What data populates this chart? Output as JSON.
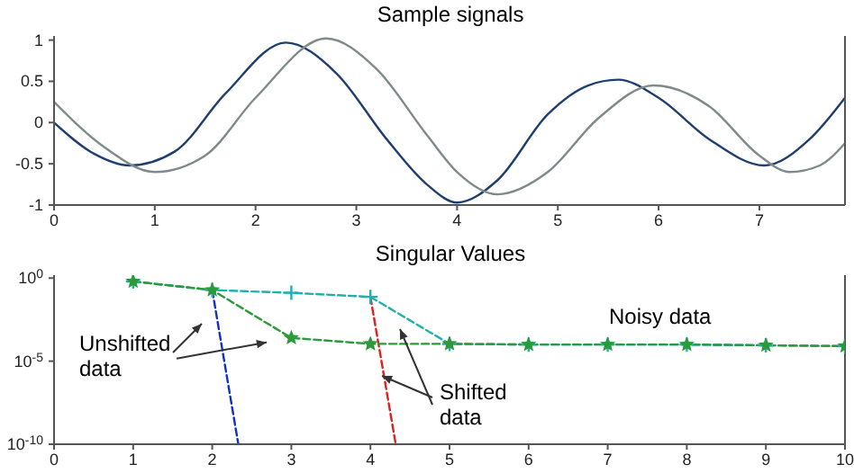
{
  "chart_data": [
    {
      "type": "line",
      "title": "Sample signals",
      "xlim": [
        0,
        7.85
      ],
      "xticks": [
        0,
        1,
        2,
        3,
        4,
        5,
        6,
        7
      ],
      "ylim": [
        -1,
        1.05
      ],
      "yticks": [
        -1,
        -0.5,
        0,
        0.5,
        1
      ],
      "grid": false,
      "marker": "none",
      "line_style": "solid",
      "series": [
        {
          "color": "#1f3f6f",
          "x": [
            0,
            0.4,
            0.75,
            1.2,
            1.7,
            2.3,
            2.8,
            3.3,
            3.7,
            4.0,
            4.4,
            4.9,
            5.3,
            5.6,
            6.0,
            6.5,
            7.05,
            7.5,
            7.85
          ],
          "values": [
            0,
            -0.38,
            -0.52,
            -0.35,
            0.35,
            0.97,
            0.6,
            -0.2,
            -0.75,
            -0.97,
            -0.7,
            0.1,
            0.45,
            0.52,
            0.3,
            -0.2,
            -0.52,
            -0.2,
            0.3
          ]
        },
        {
          "color": "#7f8a8a",
          "x": [
            0,
            0.5,
            1.0,
            1.5,
            2.0,
            2.7,
            3.2,
            3.7,
            4.0,
            4.4,
            4.9,
            5.4,
            5.95,
            6.5,
            7.0,
            7.3,
            7.6,
            7.85
          ],
          "values": [
            0.25,
            -0.3,
            -0.6,
            -0.4,
            0.3,
            1.02,
            0.65,
            -0.15,
            -0.6,
            -0.87,
            -0.6,
            0.05,
            0.45,
            0.2,
            -0.4,
            -0.6,
            -0.52,
            -0.25
          ]
        }
      ]
    },
    {
      "type": "line",
      "title": "Singular Values",
      "log": "y",
      "xlim": [
        0,
        10
      ],
      "xticks": [
        0,
        1,
        2,
        3,
        4,
        5,
        6,
        7,
        8,
        9,
        10
      ],
      "ylim": [
        1e-10,
        1.5
      ],
      "yticks": [
        {
          "value": 1e-10,
          "label": "10$^{-10}$"
        },
        {
          "value": 1e-05,
          "label": "10$^{-5}$"
        },
        {
          "value": 1,
          "label": "10$^{0}$"
        }
      ],
      "grid": false,
      "annotations": [
        "Noisy data",
        "Unshifted data",
        "Shifted data"
      ],
      "series": [
        {
          "color": "#1030d0",
          "line_style": "dashed",
          "marker": "none",
          "x": [
            2,
            2.33
          ],
          "values": [
            0.19,
            1e-10
          ]
        },
        {
          "color": "#e02020",
          "line_style": "dashed",
          "marker": "none",
          "x": [
            4,
            4.32
          ],
          "values": [
            0.074,
            1e-10
          ]
        },
        {
          "color": "#20b0b0",
          "line_style": "dashed",
          "marker": "cross",
          "x": [
            1,
            2,
            3,
            4,
            5,
            6,
            7,
            8,
            9,
            10
          ],
          "values": [
            0.63,
            0.19,
            0.13,
            0.074,
            0.00011,
            0.0001,
            0.0001,
            0.0001,
            9e-05,
            8e-05
          ]
        },
        {
          "color": "#2a9a3a",
          "line_style": "dashed",
          "marker": "star",
          "x": [
            1,
            2,
            3,
            4,
            5,
            6,
            7,
            8,
            9,
            10
          ],
          "values": [
            0.63,
            0.19,
            0.00025,
            0.00011,
            0.00011,
            0.0001,
            0.0001,
            0.0001,
            9e-05,
            8e-05
          ]
        }
      ]
    }
  ]
}
